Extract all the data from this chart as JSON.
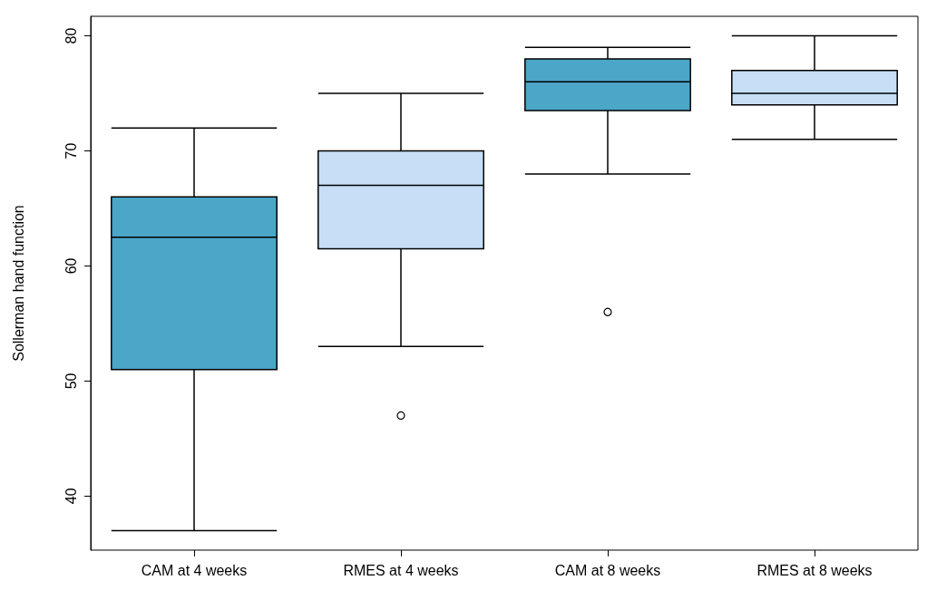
{
  "chart_data": {
    "type": "box",
    "ylabel": "Sollerman hand function",
    "categories": [
      "CAM at 4 weeks",
      "RMES at 4 weeks",
      "CAM at 8 weeks",
      "RMES at 8 weeks"
    ],
    "boxes": [
      {
        "low": 37,
        "q1": 51,
        "median": 62.5,
        "q3": 66,
        "high": 72
      },
      {
        "low": 53,
        "q1": 61.5,
        "median": 67,
        "q3": 70,
        "high": 75,
        "outliers": [
          47
        ]
      },
      {
        "low": 68,
        "q1": 73.5,
        "median": 76,
        "q3": 78,
        "high": 79,
        "outliers": [
          56
        ]
      },
      {
        "low": 71,
        "q1": 74,
        "median": 75,
        "q3": 77,
        "high": 80
      }
    ],
    "colors": [
      "#4ba6c8",
      "#c6dff7",
      "#4ba6c8",
      "#c6dff7"
    ],
    "ylim": [
      35.3,
      81.7
    ],
    "yticks": [
      40,
      50,
      60,
      70,
      80
    ],
    "grid": false
  }
}
